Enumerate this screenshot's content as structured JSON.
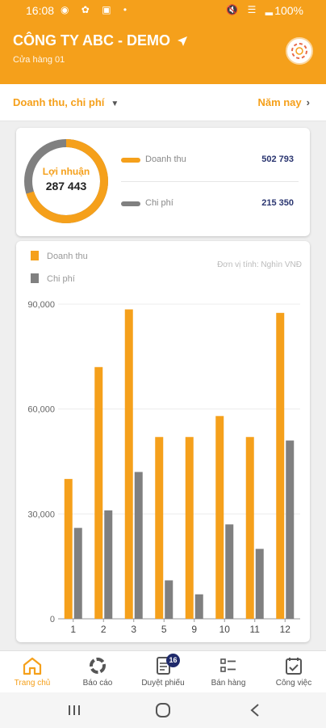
{
  "status_bar": {
    "time": "16:08",
    "left_icons": "◉ ✿ ▣ •",
    "right_icons": "🔇 ☰ ▂",
    "battery": "100%"
  },
  "header": {
    "company": "CÔNG TY ABC - DEMO",
    "store": "Cửa hàng 01"
  },
  "filter": {
    "metric": "Doanh thu, chi phí",
    "period": "Năm nay"
  },
  "summary": {
    "profit_label": "Lợi nhuận",
    "profit_value": "287 443",
    "revenue_label": "Doanh thu",
    "revenue_value": "502 793",
    "expense_label": "Chi phí",
    "expense_value": "215 350",
    "revenue_share": 0.7
  },
  "colors": {
    "accent": "#f5a01b",
    "expense": "#808080",
    "value_text": "#2a3570"
  },
  "chart_data": {
    "type": "bar",
    "categories": [
      "1",
      "2",
      "3",
      "5",
      "9",
      "10",
      "11",
      "12"
    ],
    "series": [
      {
        "name": "Doanh thu",
        "values": [
          40000,
          72000,
          88500,
          52000,
          52000,
          58000,
          52000,
          87500
        ]
      },
      {
        "name": "Chi phí",
        "values": [
          26000,
          31000,
          42000,
          11000,
          7000,
          27000,
          20000,
          51000
        ]
      }
    ],
    "unit_note": "Đơn vị tính: Nghìn VNĐ",
    "yticks": [
      "0",
      "30,000",
      "60,000",
      "90,000"
    ],
    "ylim": [
      0,
      90000
    ],
    "grid": true,
    "legend": "top-left"
  },
  "bottom_nav": [
    {
      "label": "Trang chủ",
      "icon": "home-icon",
      "active": true
    },
    {
      "label": "Báo cáo",
      "icon": "report-icon",
      "active": false
    },
    {
      "label": "Duyệt phiếu",
      "icon": "document-icon",
      "active": false,
      "badge": "16"
    },
    {
      "label": "Bán hàng",
      "icon": "checklist-icon",
      "active": false
    },
    {
      "label": "Công việc",
      "icon": "calendar-check-icon",
      "active": false
    }
  ]
}
